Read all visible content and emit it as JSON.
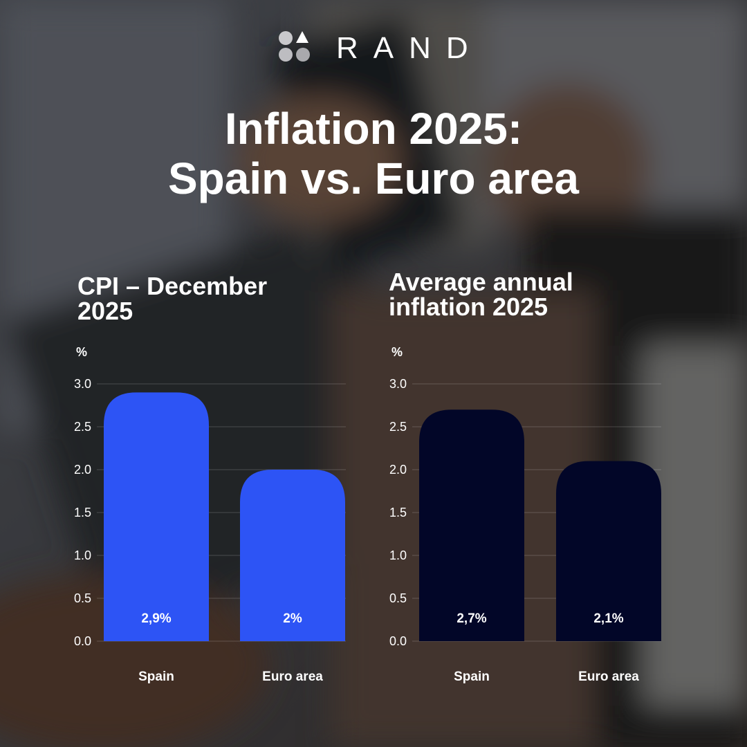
{
  "brand": {
    "name": "RAND"
  },
  "headline": {
    "line1": "Inflation 2025:",
    "line2": "Spain vs. Euro area"
  },
  "colors": {
    "left_bars": "#2d54f5",
    "right_bars": "#020628",
    "text": "#ffffff"
  },
  "chart_data": [
    {
      "type": "bar",
      "title_lines": [
        "CPI – December",
        "2025"
      ],
      "unit": "%",
      "categories": [
        "Spain",
        "Euro area"
      ],
      "values": [
        2.9,
        2.0
      ],
      "labels": [
        "2,9%",
        "2%"
      ],
      "ylim": [
        0,
        3.0
      ],
      "yticks": [
        "0.0",
        "0.5",
        "1.0",
        "1.5",
        "2.0",
        "2.5",
        "3.0"
      ],
      "grid": true,
      "bar_color": "#2d54f5"
    },
    {
      "type": "bar",
      "title_lines": [
        "Average annual",
        "inflation 2025"
      ],
      "unit": "%",
      "categories": [
        "Spain",
        "Euro area"
      ],
      "values": [
        2.7,
        2.1
      ],
      "labels": [
        "2,7%",
        "2,1%"
      ],
      "ylim": [
        0,
        3.0
      ],
      "yticks": [
        "0.0",
        "0.5",
        "1.0",
        "1.5",
        "2.0",
        "2.5",
        "3.0"
      ],
      "grid": true,
      "bar_color": "#020628"
    }
  ]
}
